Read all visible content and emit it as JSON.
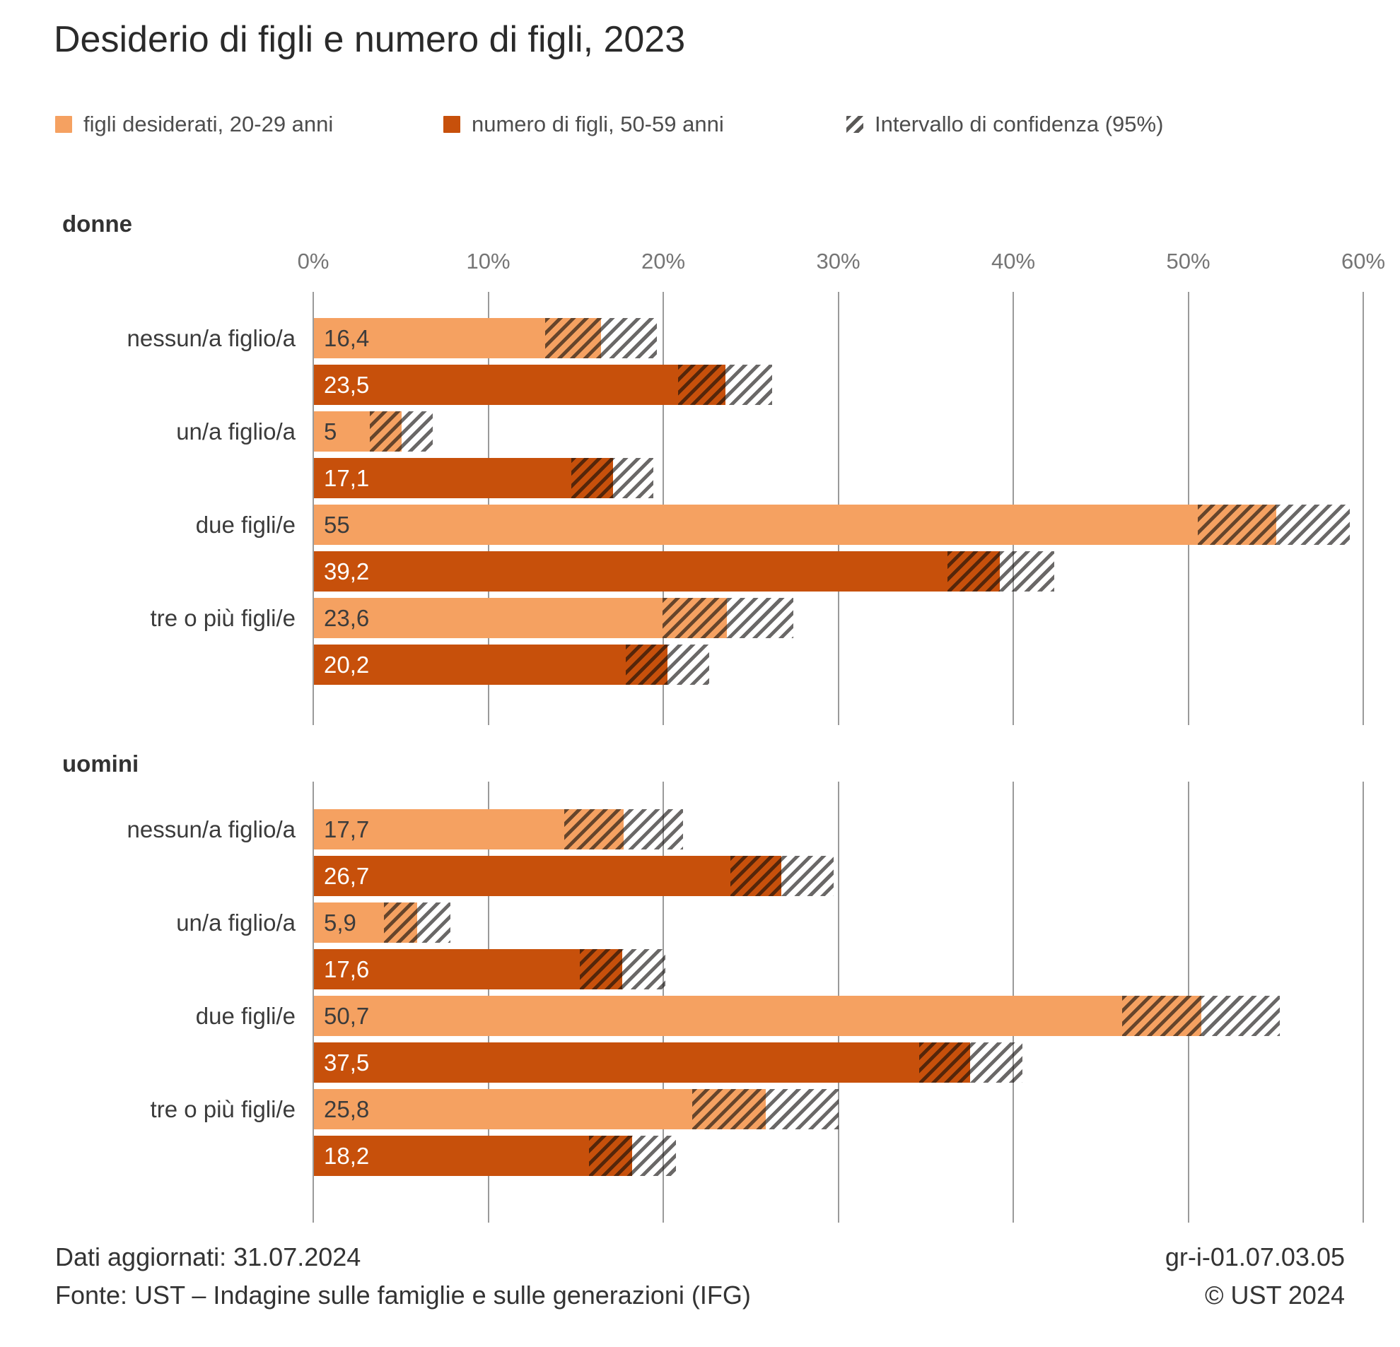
{
  "title": "Desiderio di figli e numero di figli, 2023",
  "legend": {
    "desired": "figli desiderati, 20-29 anni",
    "actual": "numero di figli, 50-59 anni",
    "ci": "Intervallo di confidenza (95%)"
  },
  "colors": {
    "light_orange": "#F5A161",
    "dark_orange": "#C7500B",
    "light_value_text": "#3c3c3c",
    "dark_value_text": "#ffffff",
    "gridline": "#9a9a9a"
  },
  "chart_data": {
    "type": "bar",
    "orientation": "horizontal",
    "unit": "%",
    "xlim": [
      0,
      60
    ],
    "x_tick_labels": [
      "0%",
      "10%",
      "20%",
      "30%",
      "40%",
      "50%",
      "60%"
    ],
    "grid": true,
    "series": [
      {
        "id": "desired",
        "name": "figli desiderati, 20-29 anni",
        "color": "#F5A161"
      },
      {
        "id": "actual",
        "name": "numero di figli, 50-59 anni",
        "color": "#C7500B"
      }
    ],
    "ci_name": "Intervallo di confidenza (95%)",
    "sections": [
      {
        "label": "donne",
        "rows": [
          {
            "category": "nessun/a figlio/a",
            "desired": {
              "value": 16.4,
              "label": "16,4",
              "ci": [
                13.2,
                19.6
              ]
            },
            "actual": {
              "value": 23.5,
              "label": "23,5",
              "ci": [
                20.8,
                26.2
              ]
            }
          },
          {
            "category": "un/a figlio/a",
            "desired": {
              "value": 5,
              "label": "5",
              "ci": [
                3.2,
                6.8
              ]
            },
            "actual": {
              "value": 17.1,
              "label": "17,1",
              "ci": [
                14.7,
                19.4
              ]
            }
          },
          {
            "category": "due figli/e",
            "desired": {
              "value": 55,
              "label": "55",
              "ci": [
                50.5,
                59.2
              ]
            },
            "actual": {
              "value": 39.2,
              "label": "39,2",
              "ci": [
                36.2,
                42.3
              ]
            }
          },
          {
            "category": "tre o più figli/e",
            "desired": {
              "value": 23.6,
              "label": "23,6",
              "ci": [
                19.9,
                27.4
              ]
            },
            "actual": {
              "value": 20.2,
              "label": "20,2",
              "ci": [
                17.8,
                22.6
              ]
            }
          }
        ]
      },
      {
        "label": "uomini",
        "rows": [
          {
            "category": "nessun/a figlio/a",
            "desired": {
              "value": 17.7,
              "label": "17,7",
              "ci": [
                14.3,
                21.1
              ]
            },
            "actual": {
              "value": 26.7,
              "label": "26,7",
              "ci": [
                23.8,
                29.7
              ]
            }
          },
          {
            "category": "un/a figlio/a",
            "desired": {
              "value": 5.9,
              "label": "5,9",
              "ci": [
                4.0,
                7.8
              ]
            },
            "actual": {
              "value": 17.6,
              "label": "17,6",
              "ci": [
                15.2,
                20.1
              ]
            }
          },
          {
            "category": "due figli/e",
            "desired": {
              "value": 50.7,
              "label": "50,7",
              "ci": [
                46.2,
                55.2
              ]
            },
            "actual": {
              "value": 37.5,
              "label": "37,5",
              "ci": [
                34.6,
                40.5
              ]
            }
          },
          {
            "category": "tre o più figli/e",
            "desired": {
              "value": 25.8,
              "label": "25,8",
              "ci": [
                21.6,
                30.0
              ]
            },
            "actual": {
              "value": 18.2,
              "label": "18,2",
              "ci": [
                15.7,
                20.7
              ]
            }
          }
        ]
      }
    ]
  },
  "footer": {
    "updated": "Dati aggiornati: 31.07.2024",
    "source": "Fonte: UST – Indagine sulle famiglie e sulle generazioni (IFG)",
    "code": "gr-i-01.07.03.05",
    "copyright": "© UST 2024"
  }
}
